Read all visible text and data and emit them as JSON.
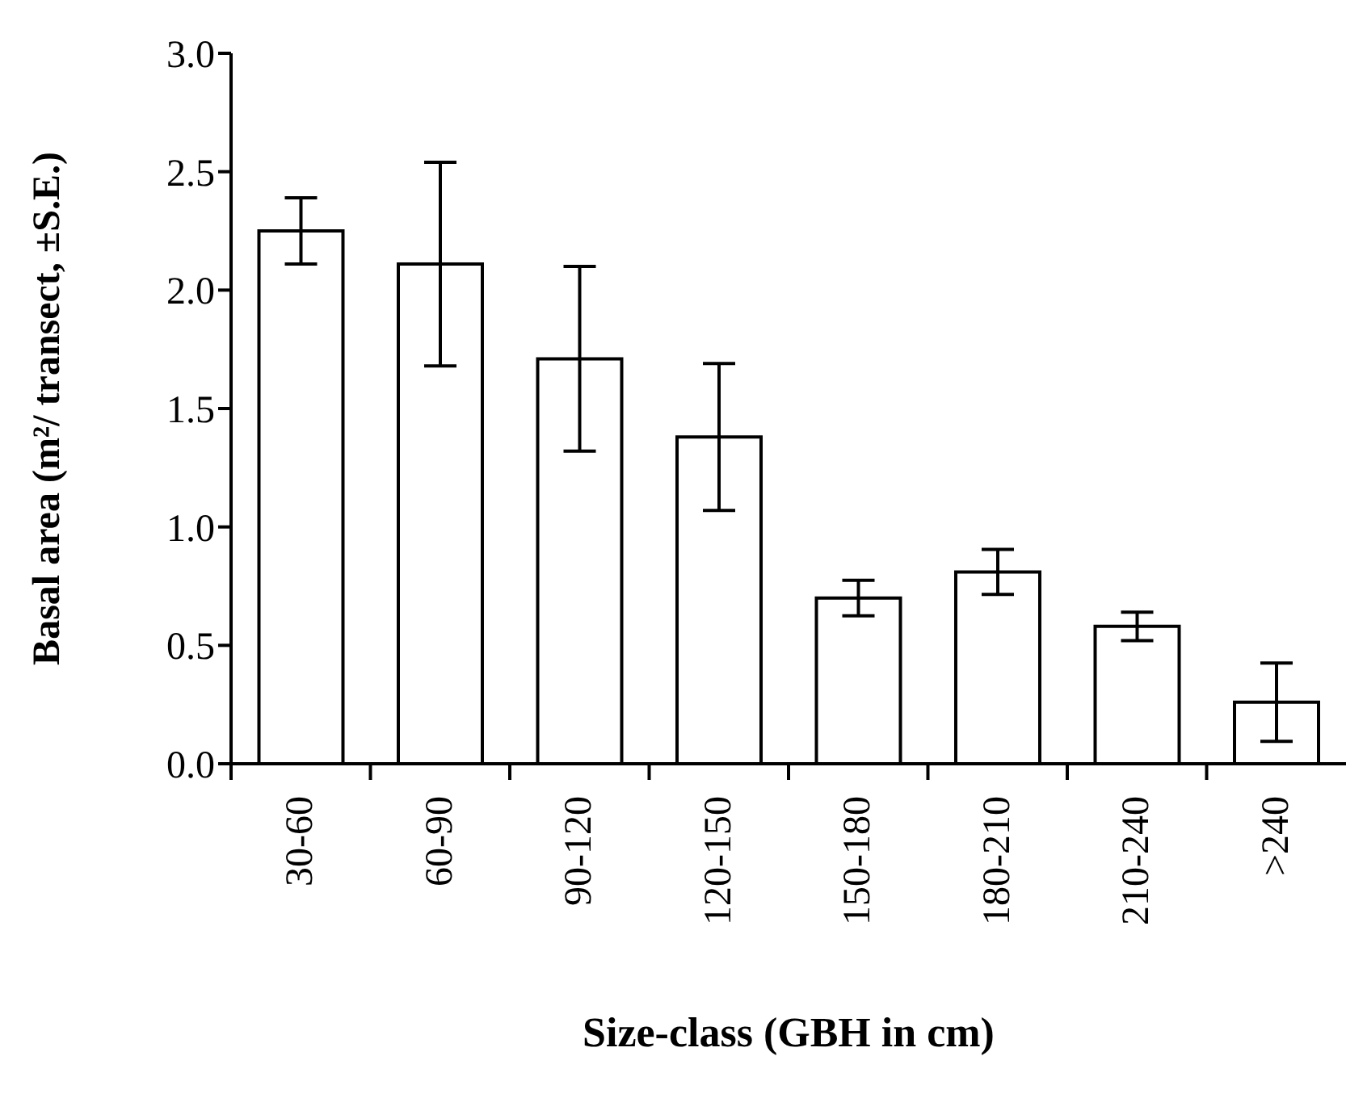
{
  "chart_data": {
    "type": "bar",
    "xlabel": "Size-class (GBH in cm)",
    "ylabel": "Basal area (m²/ transect, ±S.E.)",
    "categories": [
      "30-60",
      "60-90",
      "90-120",
      "120-150",
      "150-180",
      "180-210",
      "210-240",
      ">240"
    ],
    "values": [
      2.25,
      2.11,
      1.71,
      1.38,
      0.7,
      0.81,
      0.58,
      0.26
    ],
    "errors": [
      0.14,
      0.43,
      0.39,
      0.31,
      0.075,
      0.095,
      0.06,
      0.165
    ],
    "color": "#ffffff",
    "ylim": [
      0,
      3
    ],
    "yticks": [
      {
        "value": 0,
        "label": "0.0"
      },
      {
        "value": 0.5,
        "label": "0.5"
      },
      {
        "value": 1,
        "label": "1.0"
      },
      {
        "value": 1.5,
        "label": "1.5"
      },
      {
        "value": 2,
        "label": "2.0"
      },
      {
        "value": 2.5,
        "label": "2.5"
      },
      {
        "value": 3,
        "label": "3.0"
      }
    ],
    "grid": false,
    "legend": false
  }
}
